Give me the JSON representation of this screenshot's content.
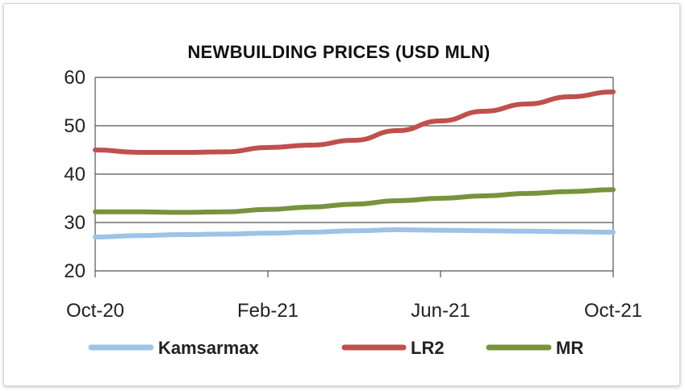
{
  "chart_data": {
    "type": "line",
    "title": "NEWBUILDING PRICES (USD MLN)",
    "xlabel": "",
    "ylabel": "",
    "ylim": [
      20,
      60
    ],
    "yticks": [
      "20",
      "30",
      "40",
      "50",
      "60"
    ],
    "xticks": [
      "Oct-20",
      "Feb-21",
      "Jun-21",
      "Oct-21"
    ],
    "x": [
      "Oct-20",
      "Nov-20",
      "Dec-20",
      "Jan-21",
      "Feb-21",
      "Mar-21",
      "Apr-21",
      "May-21",
      "Jun-21",
      "Jul-21",
      "Aug-21",
      "Sep-21",
      "Oct-21"
    ],
    "grid": "horizontal",
    "legend": "bottom",
    "series": [
      {
        "name": "Kamsarmax",
        "color": "#9dc3e6",
        "values": [
          27,
          27.3,
          27.5,
          27.6,
          27.8,
          28,
          28.3,
          28.5,
          28.4,
          28.3,
          28.2,
          28.1,
          28
        ]
      },
      {
        "name": "LR2",
        "color": "#c0504d",
        "values": [
          45,
          44.5,
          44.5,
          44.6,
          45.5,
          46,
          47,
          49,
          51,
          53,
          54.5,
          56,
          57
        ]
      },
      {
        "name": "MR",
        "color": "#77933c",
        "values": [
          32.2,
          32.2,
          32.1,
          32.2,
          32.7,
          33.2,
          33.8,
          34.5,
          35,
          35.5,
          36,
          36.4,
          36.8
        ]
      }
    ]
  }
}
